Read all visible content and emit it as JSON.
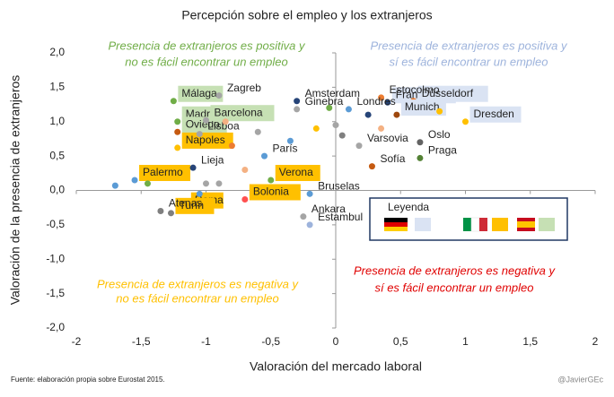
{
  "chart_data": {
    "type": "scatter",
    "title": "Percepción sobre el empleo y los extranjeros",
    "x_label": "Valoración del mercado laboral",
    "y_label": "Valoración de la presencia de extranjeros",
    "xlim": [
      -2,
      2
    ],
    "ylim": [
      -2,
      2
    ],
    "xticks": [
      -2,
      {
        "value": -1.5,
        "label": "-1,5"
      },
      -1,
      {
        "value": -0.5,
        "label": "-0,5"
      },
      0,
      {
        "value": 0.5,
        "label": "0,5"
      },
      1,
      {
        "value": 1.5,
        "label": "1,5"
      },
      2
    ],
    "yticks": [
      {
        "value": 2,
        "label": "2,0"
      },
      {
        "value": 1.5,
        "label": "1,5"
      },
      {
        "value": 1,
        "label": "1,0"
      },
      {
        "value": 0.5,
        "label": "0,5"
      },
      {
        "value": 0,
        "label": "0,0"
      },
      {
        "value": -0.5,
        "label": "-0,5"
      },
      {
        "value": -1,
        "label": "-1,0"
      },
      {
        "value": -1.5,
        "label": "-1,5"
      },
      {
        "value": -2,
        "label": "-2,0"
      }
    ],
    "annotations": [
      {
        "text": "Presencia de extranjeros es positiva y",
        "color": "#70ad47"
      },
      {
        "text": "no es fácil encontrar un empleo",
        "color": "#70ad47"
      },
      {
        "text": "Presencia de extranjeros es positiva y",
        "color": "#9db3dc"
      },
      {
        "text": "sí es fácil encontrar un empleo",
        "color": "#9db3dc"
      },
      {
        "text": "Presencia de extranjeros es negativa y",
        "color": "#ffc000"
      },
      {
        "text": "no es fácil encontrar un empleo",
        "color": "#ffc000"
      },
      {
        "text": "Presencia de extranjeros es negativa y",
        "color": "#e00000"
      },
      {
        "text": "sí es fácil encontrar un empleo",
        "color": "#e00000"
      }
    ],
    "legend_title": "Leyenda",
    "source": "Fuente: elaboración propia sobre Eurostat 2015.",
    "credit": "@JavierGEc",
    "groups": [
      {
        "label_color": "#c6e0b4",
        "points": [
          {
            "x": -1.25,
            "y": 1.3,
            "label": "Málaga",
            "color": "#70ad47"
          },
          {
            "x": -1.22,
            "y": 1.0,
            "label": "Madrid",
            "color": "#70ad47"
          },
          {
            "x": -1.22,
            "y": 0.85,
            "label": "Oviedo",
            "color": "#c55a11"
          },
          {
            "x": -1.0,
            "y": 1.02,
            "label": "Barcelona",
            "color": "#a5a5a5"
          }
        ]
      },
      {
        "label_color": "#ffc000",
        "points": [
          {
            "x": -1.22,
            "y": 0.62,
            "label": "Napoles",
            "color": "#ffc000"
          },
          {
            "x": -1.55,
            "y": 0.15,
            "label": "Palermo",
            "color": "#5b9bd5"
          },
          {
            "x": -0.5,
            "y": 0.15,
            "label": "Verona",
            "color": "#70ad47"
          },
          {
            "x": -1.15,
            "y": -0.25,
            "label": "Roma",
            "color": "#ed7d31"
          },
          {
            "x": -1.27,
            "y": -0.33,
            "label": "Turín",
            "color": "#7f7f7f"
          },
          {
            "x": -0.7,
            "y": -0.13,
            "label": "Bolonia",
            "color": "#ff5050"
          }
        ]
      },
      {
        "label_color": "#dae3f3",
        "points": [
          {
            "x": 0.4,
            "y": 1.28,
            "label": "Fráncfort",
            "color": "#264478"
          },
          {
            "x": 0.6,
            "y": 1.3,
            "label": "Düsseldorf",
            "color": "#ed7d31"
          },
          {
            "x": 1.0,
            "y": 1.0,
            "label": "Dresden",
            "color": "#ffc000"
          },
          {
            "x": 0.47,
            "y": 1.1,
            "label": "Munich",
            "color": "#9e480e"
          }
        ]
      },
      {
        "label_color": "#ffffff",
        "points": [
          {
            "x": -0.9,
            "y": 1.38,
            "label": "Zagreb",
            "color": "#a5a5a5"
          },
          {
            "x": -0.3,
            "y": 1.3,
            "label": "Amsterdam",
            "color": "#264478"
          },
          {
            "x": 0.35,
            "y": 1.35,
            "label": "Estocolmo",
            "color": "#ed7d31"
          },
          {
            "x": 0.1,
            "y": 1.18,
            "label": "Londres",
            "color": "#5b9bd5"
          },
          {
            "x": -0.3,
            "y": 1.18,
            "label": "Ginebra",
            "color": "#a5a5a5"
          },
          {
            "x": -1.05,
            "y": 0.82,
            "label": "Lisboa",
            "color": "#a5a5a5"
          },
          {
            "x": -0.55,
            "y": 0.5,
            "label": "París",
            "color": "#5b9bd5"
          },
          {
            "x": -1.1,
            "y": 0.33,
            "label": "Lieja",
            "color": "#264478"
          },
          {
            "x": -1.35,
            "y": -0.3,
            "label": "Atenas",
            "color": "#7f7f7f"
          },
          {
            "x": -0.2,
            "y": -0.05,
            "label": "Bruselas",
            "color": "#5b9bd5"
          },
          {
            "x": -0.25,
            "y": -0.38,
            "label": "Ankara",
            "color": "#a5a5a5"
          },
          {
            "x": -0.2,
            "y": -0.5,
            "label": "Estambul",
            "color": "#9db3dc"
          },
          {
            "x": 0.18,
            "y": 0.65,
            "label": "Varsovia",
            "color": "#a5a5a5"
          },
          {
            "x": 0.65,
            "y": 0.7,
            "label": "Oslo",
            "color": "#636363"
          },
          {
            "x": 0.65,
            "y": 0.47,
            "label": "Praga",
            "color": "#548235"
          },
          {
            "x": 0.28,
            "y": 0.35,
            "label": "Sofía",
            "color": "#c55a11"
          },
          {
            "x": -1.7,
            "y": 0.07,
            "label": null,
            "color": "#5b9bd5"
          },
          {
            "x": -1.45,
            "y": 0.1,
            "label": null,
            "color": "#70ad47"
          },
          {
            "x": -1.0,
            "y": 0.1,
            "label": null,
            "color": "#a5a5a5"
          },
          {
            "x": -1.05,
            "y": -0.05,
            "label": null,
            "color": "#5b9bd5"
          },
          {
            "x": -0.85,
            "y": 1.0,
            "label": null,
            "color": "#f4b183"
          },
          {
            "x": -0.6,
            "y": 0.85,
            "label": null,
            "color": "#a5a5a5"
          },
          {
            "x": -0.8,
            "y": 0.65,
            "label": null,
            "color": "#ed7d31"
          },
          {
            "x": -0.15,
            "y": 0.9,
            "label": null,
            "color": "#ffc000"
          },
          {
            "x": -0.05,
            "y": 1.2,
            "label": null,
            "color": "#70ad47"
          },
          {
            "x": 0.0,
            "y": 0.95,
            "label": null,
            "color": "#a5a5a5"
          },
          {
            "x": 0.05,
            "y": 0.8,
            "label": null,
            "color": "#7f7f7f"
          },
          {
            "x": -0.35,
            "y": 0.72,
            "label": null,
            "color": "#5b9bd5"
          },
          {
            "x": 0.25,
            "y": 1.1,
            "label": null,
            "color": "#264478"
          },
          {
            "x": 0.8,
            "y": 1.15,
            "label": null,
            "color": "#ffc000"
          },
          {
            "x": 0.35,
            "y": 0.9,
            "label": null,
            "color": "#f4b183"
          },
          {
            "x": -0.7,
            "y": 0.3,
            "label": null,
            "color": "#f4b183"
          },
          {
            "x": -0.9,
            "y": 0.1,
            "label": null,
            "color": "#a5a5a5"
          }
        ]
      }
    ]
  }
}
